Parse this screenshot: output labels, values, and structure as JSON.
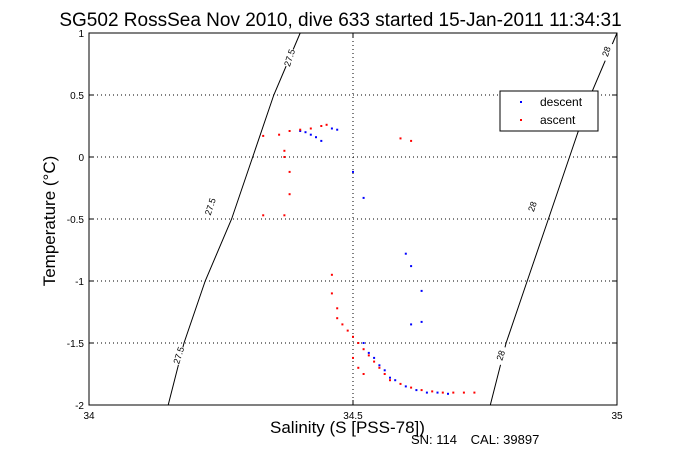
{
  "chart_data": {
    "type": "scatter",
    "title": "SG502 RossSea Nov 2010, dive 633 started 15-Jan-2011 11:34:31",
    "xlabel": "Salinity (S [PSS-78])",
    "ylabel": "Temperature (°C)",
    "xlim": [
      34,
      35
    ],
    "ylim": [
      -2,
      1
    ],
    "xticks": [
      "34",
      "34.5",
      "35"
    ],
    "yticks": [
      "-2",
      "-1.5",
      "-1",
      "-0.5",
      "0",
      "0.5",
      "1"
    ],
    "grid": true,
    "legend_position": "top-right",
    "contours": [
      {
        "label": "27.5",
        "points": [
          [
            34.15,
            -2.0
          ],
          [
            34.18,
            -1.5
          ],
          [
            34.22,
            -1.0
          ],
          [
            34.27,
            -0.5
          ],
          [
            34.31,
            0.0
          ],
          [
            34.35,
            0.5
          ],
          [
            34.4,
            1.0
          ]
        ],
        "label_positions": [
          [
            34.17,
            -1.6
          ],
          [
            34.23,
            -0.4
          ],
          [
            34.38,
            0.8
          ]
        ]
      },
      {
        "label": "28",
        "points": [
          [
            34.76,
            -2.0
          ],
          [
            34.79,
            -1.5
          ],
          [
            34.83,
            -1.0
          ],
          [
            34.87,
            -0.5
          ],
          [
            34.91,
            0.0
          ],
          [
            34.95,
            0.5
          ],
          [
            35.0,
            1.0
          ]
        ],
        "label_positions": [
          [
            34.78,
            -1.6
          ],
          [
            34.84,
            -0.4
          ],
          [
            34.98,
            0.85
          ]
        ]
      }
    ],
    "series": [
      {
        "name": "descent",
        "color": "#0000ff",
        "points": [
          [
            34.4,
            0.21
          ],
          [
            34.41,
            0.2
          ],
          [
            34.42,
            0.18
          ],
          [
            34.43,
            0.16
          ],
          [
            34.44,
            0.13
          ],
          [
            34.46,
            0.23
          ],
          [
            34.47,
            0.22
          ],
          [
            34.5,
            -0.12
          ],
          [
            34.52,
            -0.33
          ],
          [
            34.6,
            -0.78
          ],
          [
            34.61,
            -0.88
          ],
          [
            34.63,
            -1.08
          ],
          [
            34.61,
            -1.35
          ],
          [
            34.63,
            -1.33
          ],
          [
            34.52,
            -1.5
          ],
          [
            34.53,
            -1.58
          ],
          [
            34.54,
            -1.62
          ],
          [
            34.55,
            -1.68
          ],
          [
            34.56,
            -1.72
          ],
          [
            34.57,
            -1.78
          ],
          [
            34.58,
            -1.8
          ],
          [
            34.6,
            -1.85
          ],
          [
            34.62,
            -1.88
          ],
          [
            34.64,
            -1.9
          ],
          [
            34.66,
            -1.9
          ],
          [
            34.68,
            -1.91
          ]
        ]
      },
      {
        "name": "ascent",
        "color": "#ff0000",
        "points": [
          [
            34.33,
            0.17
          ],
          [
            34.36,
            0.18
          ],
          [
            34.38,
            0.21
          ],
          [
            34.4,
            0.22
          ],
          [
            34.42,
            0.23
          ],
          [
            34.44,
            0.25
          ],
          [
            34.45,
            0.26
          ],
          [
            34.37,
            0.05
          ],
          [
            34.38,
            -0.12
          ],
          [
            34.38,
            -0.3
          ],
          [
            34.33,
            -0.47
          ],
          [
            34.37,
            -0.47
          ],
          [
            34.37,
            0.0
          ],
          [
            34.59,
            0.15
          ],
          [
            34.61,
            0.13
          ],
          [
            34.46,
            -0.95
          ],
          [
            34.46,
            -1.1
          ],
          [
            34.47,
            -1.22
          ],
          [
            34.47,
            -1.3
          ],
          [
            34.48,
            -1.35
          ],
          [
            34.49,
            -1.4
          ],
          [
            34.5,
            -1.45
          ],
          [
            34.51,
            -1.5
          ],
          [
            34.52,
            -1.55
          ],
          [
            34.53,
            -1.6
          ],
          [
            34.54,
            -1.65
          ],
          [
            34.55,
            -1.7
          ],
          [
            34.56,
            -1.75
          ],
          [
            34.57,
            -1.8
          ],
          [
            34.59,
            -1.83
          ],
          [
            34.61,
            -1.86
          ],
          [
            34.63,
            -1.88
          ],
          [
            34.65,
            -1.89
          ],
          [
            34.67,
            -1.9
          ],
          [
            34.69,
            -1.9
          ],
          [
            34.71,
            -1.9
          ],
          [
            34.73,
            -1.9
          ],
          [
            34.5,
            -1.62
          ],
          [
            34.51,
            -1.7
          ],
          [
            34.52,
            -1.75
          ]
        ]
      }
    ]
  },
  "footer": {
    "sn": "SN: 114",
    "cal": "CAL: 39897"
  }
}
